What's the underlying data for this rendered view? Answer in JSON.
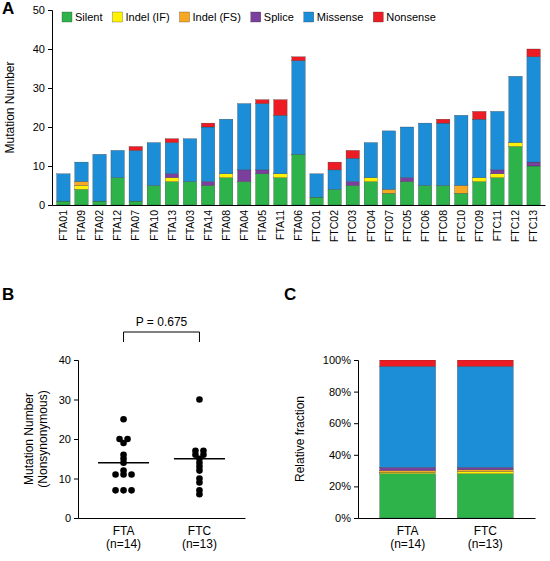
{
  "chart_data": [
    {
      "type": "bar",
      "stacked": true,
      "title": "A",
      "y_label": "Mutation Number",
      "legend": "top",
      "categories": [
        "FTA01",
        "FTA09",
        "FTA02",
        "FTA12",
        "FTA07",
        "FTA10",
        "FTA13",
        "FTA03",
        "FTA14",
        "FTA08",
        "FTA04",
        "FTA05",
        "FTA11",
        "FTA06",
        "FTC01",
        "FTC02",
        "FTC03",
        "FTC04",
        "FTC07",
        "FTC05",
        "FTC06",
        "FTC08",
        "FTC10",
        "FTC09",
        "FTC11",
        "FTC12",
        "FTC13"
      ],
      "series": [
        {
          "name": "Silent",
          "color": "#2db34a",
          "values": [
            1,
            4,
            1,
            7,
            1,
            5,
            6,
            6,
            5,
            7,
            6,
            8,
            7,
            13,
            2,
            4,
            5,
            6,
            3,
            6,
            5,
            5,
            3,
            6,
            7,
            15,
            10
          ]
        },
        {
          "name": "Indel (IF)",
          "color": "#fff200",
          "values": [
            0,
            1,
            0,
            0,
            0,
            0,
            1,
            0,
            0,
            1,
            0,
            0,
            1,
            0,
            0,
            0,
            0,
            1,
            0,
            0,
            0,
            0,
            0,
            1,
            1,
            1,
            0
          ]
        },
        {
          "name": "Indel (FS)",
          "color": "#f7a823",
          "values": [
            0,
            1,
            0,
            0,
            0,
            0,
            0,
            0,
            0,
            0,
            0,
            0,
            0,
            0,
            0,
            0,
            0,
            0,
            1,
            0,
            0,
            0,
            2,
            0,
            0,
            0,
            0
          ]
        },
        {
          "name": "Splice",
          "color": "#7b3f9e",
          "values": [
            0,
            0,
            0,
            0,
            0,
            0,
            1,
            0,
            1,
            0,
            3,
            1,
            0,
            0,
            0,
            0,
            1,
            0,
            0,
            1,
            0,
            0,
            0,
            0,
            1,
            0,
            1
          ]
        },
        {
          "name": "Missense",
          "color": "#1c8ed8",
          "values": [
            7,
            5,
            12,
            7,
            13,
            11,
            8,
            11,
            14,
            14,
            17,
            17,
            15,
            24,
            6,
            5,
            6,
            9,
            15,
            13,
            16,
            16,
            18,
            15,
            15,
            17,
            27
          ]
        },
        {
          "name": "Nonsense",
          "color": "#ed1c24",
          "values": [
            0,
            0,
            0,
            0,
            1,
            0,
            1,
            0,
            1,
            0,
            0,
            1,
            4,
            1,
            0,
            2,
            2,
            0,
            0,
            0,
            0,
            1,
            0,
            2,
            0,
            0,
            2
          ]
        }
      ],
      "ylim": [
        0,
        50
      ],
      "yticks": [
        0,
        10,
        20,
        30,
        40,
        50
      ]
    },
    {
      "type": "scatter",
      "title": "B",
      "y_label": "Mutation Number\n(Nonsynonymous)",
      "categories": [
        "FTA\n(n=14)",
        "FTC\n(n=13)"
      ],
      "values": [
        [
          7,
          7,
          7,
          11,
          11,
          11,
          12,
          14,
          15,
          16,
          19,
          20,
          20,
          25
        ],
        [
          6,
          7,
          9,
          10,
          12,
          13,
          14,
          15,
          16,
          16,
          17,
          17,
          30
        ]
      ],
      "means": [
        14,
        15
      ],
      "annotations": [
        "P = 0.675"
      ],
      "color": "#000000",
      "ylim": [
        0,
        40
      ],
      "yticks": [
        0,
        10,
        20,
        30,
        40
      ]
    },
    {
      "type": "bar",
      "stacked": true,
      "title": "C",
      "y_label": "Relative fraction",
      "categories": [
        "FTA\n(n=14)",
        "FTC\n(n=13)"
      ],
      "series": [
        {
          "color": "#2db34a",
          "values": [
            28,
            28
          ]
        },
        {
          "color": "#fff200",
          "values": [
            1,
            1.5
          ]
        },
        {
          "color": "#f7a823",
          "values": [
            1,
            1
          ]
        },
        {
          "color": "#7b3f9e",
          "values": [
            2,
            1.5
          ]
        },
        {
          "color": "#1c8ed8",
          "values": [
            64,
            64
          ]
        },
        {
          "color": "#ed1c24",
          "values": [
            4,
            4
          ]
        }
      ],
      "ylim": [
        0,
        100
      ],
      "yticks": [
        {
          "value": 0,
          "label": "0%"
        },
        {
          "value": 20,
          "label": "20%"
        },
        {
          "value": 40,
          "label": "40%"
        },
        {
          "value": 60,
          "label": "60%"
        },
        {
          "value": 80,
          "label": "80%"
        },
        {
          "value": 100,
          "label": "100%"
        }
      ]
    }
  ]
}
